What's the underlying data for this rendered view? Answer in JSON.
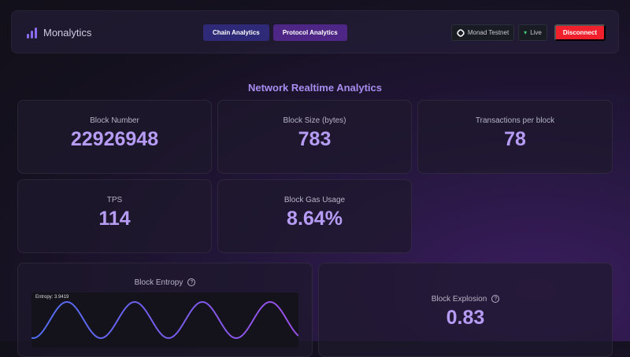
{
  "header": {
    "app_name": "Monalytics",
    "nav": [
      {
        "label": "Chain Analytics",
        "color": "#2f2a78"
      },
      {
        "label": "Protocol Analytics",
        "color": "#4e2685"
      }
    ],
    "network": "Monad Testnet",
    "status": "Live",
    "disconnect": "Disconnect"
  },
  "page_title": "Network Realtime Analytics",
  "stats": [
    {
      "label": "Block Number",
      "value": "22926948"
    },
    {
      "label": "Block Size (bytes)",
      "value": "783"
    },
    {
      "label": "Transactions per block",
      "value": "78"
    },
    {
      "label": "TPS",
      "value": "114"
    },
    {
      "label": "Block Gas Usage",
      "value": "8.64%"
    }
  ],
  "entropy": {
    "label": "Block Entropy",
    "help": "?",
    "readout": "Entropy: 3.9419"
  },
  "explosion": {
    "label": "Block Explosion",
    "help": "?",
    "value": "0.83"
  },
  "colors": {
    "accent": "#b69cf5",
    "wave_start": "#4f6df0",
    "wave_end": "#9a4fe8",
    "danger": "#f0202c"
  }
}
